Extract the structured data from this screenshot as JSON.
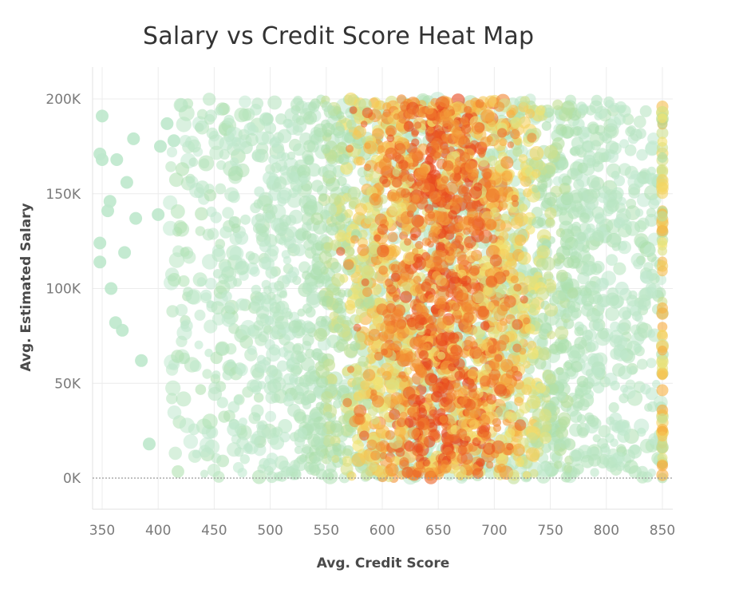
{
  "chart_data": {
    "type": "heatmap",
    "title": "Salary vs Credit Score Heat Map",
    "xlabel": "Avg. Credit Score",
    "ylabel": "Avg. Estimated Salary",
    "xlim": [
      340,
      860
    ],
    "ylim": [
      -15000,
      215000
    ],
    "x_ticks": [
      350,
      400,
      450,
      500,
      550,
      600,
      650,
      700,
      750,
      800,
      850
    ],
    "x_tick_labels": [
      "350",
      "400",
      "450",
      "500",
      "550",
      "600",
      "650",
      "700",
      "750",
      "800",
      "850"
    ],
    "y_ticks": [
      0,
      50000,
      100000,
      150000,
      200000
    ],
    "y_tick_labels": [
      "0K",
      "50K",
      "100K",
      "150K",
      "200K"
    ],
    "grid": true,
    "colors": {
      "low": "#b7e4c7",
      "mid_low": "#a8dc8e",
      "mid": "#f4e46a",
      "mid_high": "#f6a83a",
      "high": "#e8431b"
    },
    "density_by_score_band": [
      {
        "score_band": "350-400",
        "relative_density": 0.02
      },
      {
        "score_band": "400-450",
        "relative_density": 0.08
      },
      {
        "score_band": "450-500",
        "relative_density": 0.18
      },
      {
        "score_band": "500-550",
        "relative_density": 0.42
      },
      {
        "score_band": "550-600",
        "relative_density": 0.7
      },
      {
        "score_band": "600-650",
        "relative_density": 0.95
      },
      {
        "score_band": "650-700",
        "relative_density": 1.0
      },
      {
        "score_band": "700-750",
        "relative_density": 0.7
      },
      {
        "score_band": "750-800",
        "relative_density": 0.4
      },
      {
        "score_band": "800-850",
        "relative_density": 0.2
      },
      {
        "score_band": "850",
        "relative_density": 0.55
      }
    ],
    "sparse_points": [
      {
        "x": 350,
        "y": 191000
      },
      {
        "x": 348,
        "y": 171000
      },
      {
        "x": 350,
        "y": 168000
      },
      {
        "x": 363,
        "y": 168000
      },
      {
        "x": 357,
        "y": 146000
      },
      {
        "x": 355,
        "y": 141000
      },
      {
        "x": 348,
        "y": 124000
      },
      {
        "x": 348,
        "y": 114000
      },
      {
        "x": 372,
        "y": 156000
      },
      {
        "x": 378,
        "y": 179000
      },
      {
        "x": 380,
        "y": 137000
      },
      {
        "x": 370,
        "y": 119000
      },
      {
        "x": 358,
        "y": 100000
      },
      {
        "x": 362,
        "y": 82000
      },
      {
        "x": 368,
        "y": 78000
      },
      {
        "x": 385,
        "y": 62000
      },
      {
        "x": 392,
        "y": 18000
      },
      {
        "x": 400,
        "y": 139000
      },
      {
        "x": 402,
        "y": 175000
      },
      {
        "x": 408,
        "y": 187000
      },
      {
        "x": 414,
        "y": 178000
      }
    ]
  }
}
